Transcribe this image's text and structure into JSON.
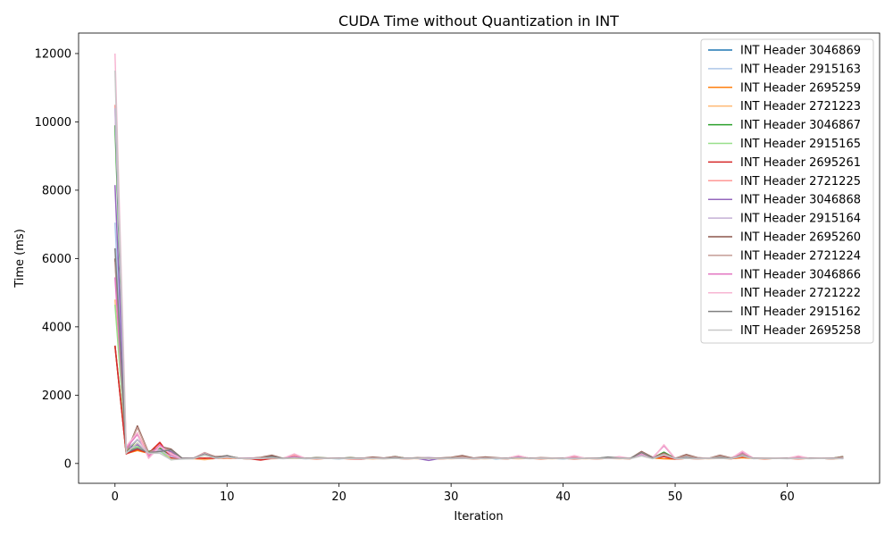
{
  "chart_data": {
    "type": "line",
    "title": "CUDA Time without Quantization in INT",
    "xlabel": "Iteration",
    "ylabel": "Time (ms)",
    "xlim": [
      -3.25,
      68.25
    ],
    "ylim": [
      -580,
      12600
    ],
    "xticks": [
      0,
      10,
      20,
      30,
      40,
      50,
      60
    ],
    "yticks": [
      0,
      2000,
      4000,
      6000,
      8000,
      10000,
      12000
    ],
    "grid": false,
    "legend_position": "top-right",
    "x": [
      0,
      1,
      2,
      3,
      4,
      5,
      6,
      7,
      8,
      9,
      10,
      11,
      12,
      13,
      14,
      15,
      16,
      17,
      18,
      19,
      20,
      21,
      22,
      23,
      24,
      25,
      26,
      27,
      28,
      29,
      30,
      31,
      32,
      33,
      34,
      35,
      36,
      37,
      38,
      39,
      40,
      41,
      42,
      43,
      44,
      45,
      46,
      47,
      48,
      49,
      50,
      51,
      52,
      53,
      54,
      55,
      56,
      57,
      58,
      59,
      60,
      61,
      62,
      63,
      64,
      65
    ],
    "series": [
      {
        "name": "INT Header 3046869",
        "color": "#1f77b4",
        "values": [
          3450,
          300,
          420,
          330,
          460,
          180,
          150,
          160,
          250,
          180,
          190,
          150,
          140,
          170,
          160,
          150,
          170,
          150,
          150,
          150,
          140,
          150,
          140,
          160,
          150,
          170,
          150,
          160,
          150,
          150,
          160,
          170,
          150,
          160,
          140,
          150,
          170,
          150,
          150,
          150,
          140,
          150,
          160,
          150,
          150,
          170,
          150,
          260,
          170,
          200,
          150,
          180,
          150,
          160,
          170,
          150,
          200,
          150,
          150,
          150,
          150,
          150,
          150,
          150,
          140,
          160
        ]
      },
      {
        "name": "INT Header 2915163",
        "color": "#aec7e8",
        "values": [
          7050,
          400,
          500,
          320,
          350,
          160,
          140,
          150,
          280,
          170,
          190,
          150,
          160,
          150,
          180,
          150,
          160,
          140,
          150,
          150,
          160,
          150,
          150,
          150,
          140,
          160,
          150,
          150,
          160,
          150,
          150,
          160,
          150,
          150,
          150,
          140,
          170,
          150,
          150,
          160,
          150,
          140,
          150,
          160,
          150,
          150,
          150,
          250,
          170,
          230,
          140,
          170,
          160,
          150,
          160,
          150,
          220,
          150,
          150,
          160,
          150,
          150,
          150,
          150,
          150,
          140
        ]
      },
      {
        "name": "INT Header 2695259",
        "color": "#ff7f0e",
        "values": [
          3450,
          290,
          380,
          300,
          600,
          180,
          140,
          150,
          130,
          150,
          170,
          150,
          140,
          130,
          150,
          150,
          160,
          150,
          140,
          150,
          150,
          140,
          150,
          140,
          150,
          150,
          140,
          150,
          150,
          140,
          150,
          150,
          140,
          150,
          150,
          140,
          160,
          150,
          140,
          150,
          150,
          140,
          150,
          140,
          150,
          150,
          140,
          260,
          160,
          140,
          130,
          150,
          140,
          150,
          150,
          140,
          170,
          150,
          140,
          150,
          150,
          140,
          150,
          150,
          140,
          150
        ]
      },
      {
        "name": "INT Header 2721223",
        "color": "#ffbb78",
        "values": [
          4800,
          350,
          600,
          300,
          400,
          150,
          150,
          140,
          110,
          150,
          150,
          150,
          140,
          150,
          140,
          150,
          150,
          150,
          140,
          150,
          150,
          150,
          140,
          150,
          140,
          150,
          150,
          140,
          150,
          150,
          140,
          150,
          150,
          140,
          150,
          150,
          140,
          150,
          150,
          140,
          150,
          150,
          140,
          150,
          150,
          140,
          150,
          250,
          150,
          300,
          140,
          150,
          150,
          140,
          150,
          150,
          250,
          150,
          140,
          150,
          150,
          140,
          150,
          150,
          140,
          150
        ]
      },
      {
        "name": "INT Header 3046867",
        "color": "#2ca02c",
        "values": [
          9900,
          350,
          700,
          350,
          450,
          200,
          150,
          150,
          280,
          170,
          210,
          160,
          150,
          160,
          170,
          160,
          190,
          150,
          170,
          160,
          150,
          170,
          150,
          160,
          150,
          200,
          150,
          160,
          150,
          150,
          160,
          160,
          150,
          170,
          160,
          150,
          180,
          150,
          160,
          150,
          150,
          150,
          160,
          150,
          170,
          160,
          150,
          300,
          160,
          330,
          150,
          170,
          160,
          150,
          170,
          160,
          300,
          150,
          160,
          150,
          150,
          160,
          150,
          150,
          150,
          200
        ]
      },
      {
        "name": "INT Header 2915165",
        "color": "#98df8a",
        "values": [
          4650,
          320,
          500,
          320,
          380,
          110,
          150,
          150,
          240,
          160,
          180,
          150,
          160,
          150,
          170,
          150,
          160,
          150,
          150,
          150,
          150,
          150,
          150,
          150,
          150,
          170,
          150,
          150,
          150,
          150,
          150,
          150,
          150,
          150,
          150,
          150,
          170,
          150,
          150,
          150,
          150,
          150,
          150,
          150,
          150,
          160,
          150,
          240,
          150,
          220,
          150,
          160,
          150,
          150,
          160,
          150,
          200,
          150,
          150,
          150,
          150,
          150,
          150,
          150,
          150,
          150
        ]
      },
      {
        "name": "INT Header 2695261",
        "color": "#d62728",
        "values": [
          3450,
          280,
          420,
          300,
          620,
          170,
          140,
          150,
          160,
          150,
          170,
          150,
          140,
          100,
          150,
          150,
          170,
          150,
          140,
          150,
          150,
          140,
          130,
          170,
          150,
          150,
          140,
          150,
          150,
          140,
          150,
          160,
          140,
          150,
          150,
          140,
          170,
          150,
          140,
          150,
          150,
          140,
          150,
          140,
          150,
          150,
          140,
          280,
          160,
          200,
          130,
          150,
          140,
          150,
          160,
          140,
          200,
          150,
          140,
          150,
          150,
          140,
          150,
          150,
          140,
          160
        ]
      },
      {
        "name": "INT Header 2721225",
        "color": "#ff9896",
        "values": [
          10500,
          450,
          900,
          250,
          500,
          300,
          150,
          140,
          250,
          150,
          180,
          150,
          150,
          160,
          170,
          150,
          250,
          150,
          150,
          160,
          150,
          150,
          150,
          150,
          150,
          170,
          150,
          150,
          150,
          150,
          150,
          150,
          150,
          150,
          150,
          150,
          220,
          150,
          150,
          150,
          150,
          200,
          150,
          150,
          150,
          180,
          150,
          300,
          150,
          300,
          150,
          150,
          160,
          150,
          160,
          150,
          350,
          150,
          150,
          150,
          150,
          200,
          150,
          150,
          150,
          150
        ]
      },
      {
        "name": "INT Header 3046868",
        "color": "#9467bd",
        "values": [
          8150,
          420,
          550,
          320,
          400,
          350,
          150,
          150,
          300,
          150,
          200,
          160,
          150,
          160,
          180,
          150,
          170,
          150,
          150,
          150,
          150,
          150,
          150,
          150,
          150,
          160,
          150,
          150,
          90,
          150,
          150,
          160,
          150,
          150,
          150,
          150,
          170,
          150,
          150,
          150,
          150,
          150,
          150,
          150,
          150,
          160,
          150,
          250,
          160,
          250,
          150,
          160,
          150,
          150,
          160,
          150,
          220,
          150,
          150,
          150,
          150,
          150,
          150,
          150,
          150,
          150
        ]
      },
      {
        "name": "INT Header 2915164",
        "color": "#c5b0d5",
        "values": [
          10400,
          400,
          700,
          320,
          400,
          200,
          150,
          150,
          300,
          160,
          200,
          150,
          160,
          150,
          170,
          150,
          170,
          150,
          150,
          150,
          150,
          150,
          150,
          150,
          150,
          170,
          150,
          150,
          180,
          150,
          150,
          160,
          150,
          150,
          150,
          150,
          170,
          150,
          150,
          150,
          150,
          150,
          150,
          150,
          150,
          160,
          150,
          260,
          160,
          300,
          150,
          160,
          150,
          150,
          160,
          150,
          260,
          150,
          150,
          150,
          150,
          150,
          150,
          150,
          150,
          150
        ]
      },
      {
        "name": "INT Header 2695260",
        "color": "#8c564b",
        "values": [
          6000,
          300,
          1100,
          320,
          500,
          420,
          150,
          150,
          300,
          200,
          220,
          160,
          150,
          180,
          240,
          150,
          200,
          150,
          170,
          160,
          150,
          170,
          150,
          190,
          160,
          200,
          150,
          170,
          160,
          160,
          180,
          230,
          160,
          190,
          170,
          150,
          220,
          150,
          170,
          160,
          150,
          170,
          160,
          150,
          180,
          170,
          150,
          350,
          180,
          300,
          150,
          260,
          170,
          150,
          240,
          160,
          300,
          150,
          160,
          150,
          150,
          170,
          150,
          160,
          150,
          200
        ]
      },
      {
        "name": "INT Header 2721224",
        "color": "#c49c94",
        "values": [
          5900,
          330,
          1050,
          310,
          480,
          390,
          150,
          150,
          320,
          190,
          230,
          150,
          150,
          170,
          210,
          150,
          200,
          150,
          160,
          150,
          150,
          160,
          150,
          170,
          150,
          190,
          150,
          160,
          150,
          150,
          170,
          200,
          150,
          170,
          160,
          150,
          200,
          150,
          160,
          150,
          150,
          160,
          150,
          150,
          170,
          160,
          150,
          330,
          170,
          280,
          150,
          230,
          160,
          150,
          220,
          150,
          280,
          150,
          150,
          150,
          150,
          160,
          150,
          150,
          150,
          180
        ]
      },
      {
        "name": "INT Header 3046866",
        "color": "#e377c2",
        "values": [
          5450,
          450,
          850,
          200,
          550,
          250,
          150,
          150,
          280,
          150,
          190,
          150,
          160,
          150,
          180,
          150,
          200,
          150,
          150,
          150,
          150,
          150,
          150,
          150,
          150,
          170,
          150,
          150,
          150,
          150,
          150,
          150,
          150,
          150,
          150,
          150,
          200,
          150,
          150,
          150,
          150,
          170,
          150,
          150,
          150,
          180,
          150,
          280,
          170,
          520,
          150,
          170,
          150,
          150,
          170,
          150,
          330,
          150,
          150,
          150,
          150,
          170,
          150,
          150,
          150,
          150
        ]
      },
      {
        "name": "INT Header 2721222",
        "color": "#f7b6d2",
        "values": [
          12000,
          500,
          900,
          150,
          500,
          280,
          150,
          150,
          300,
          150,
          200,
          150,
          150,
          150,
          170,
          150,
          280,
          150,
          150,
          150,
          150,
          150,
          150,
          150,
          150,
          170,
          150,
          150,
          150,
          150,
          150,
          150,
          150,
          150,
          150,
          150,
          230,
          150,
          150,
          150,
          150,
          230,
          150,
          150,
          150,
          200,
          150,
          300,
          150,
          550,
          150,
          150,
          150,
          150,
          170,
          150,
          360,
          150,
          150,
          150,
          150,
          220,
          150,
          150,
          150,
          150
        ]
      },
      {
        "name": "INT Header 2915162",
        "color": "#7f7f7f",
        "values": [
          6300,
          350,
          450,
          320,
          350,
          400,
          150,
          150,
          280,
          170,
          230,
          150,
          150,
          150,
          200,
          150,
          170,
          150,
          160,
          150,
          150,
          160,
          150,
          150,
          150,
          170,
          150,
          160,
          150,
          150,
          160,
          150,
          150,
          150,
          150,
          150,
          170,
          150,
          150,
          150,
          150,
          150,
          150,
          150,
          190,
          160,
          150,
          320,
          160,
          250,
          150,
          170,
          150,
          150,
          180,
          150,
          230,
          150,
          150,
          150,
          150,
          150,
          150,
          150,
          150,
          150
        ]
      },
      {
        "name": "INT Header 2695258",
        "color": "#c7c7c7",
        "values": [
          11500,
          300,
          600,
          300,
          300,
          110,
          130,
          140,
          250,
          150,
          180,
          150,
          140,
          150,
          160,
          140,
          160,
          140,
          150,
          150,
          140,
          150,
          140,
          150,
          140,
          150,
          140,
          150,
          150,
          140,
          150,
          150,
          140,
          150,
          150,
          140,
          160,
          140,
          150,
          150,
          140,
          150,
          150,
          140,
          150,
          150,
          140,
          220,
          140,
          250,
          140,
          150,
          140,
          150,
          150,
          140,
          220,
          140,
          150,
          150,
          140,
          150,
          140,
          150,
          140,
          150
        ]
      }
    ]
  }
}
